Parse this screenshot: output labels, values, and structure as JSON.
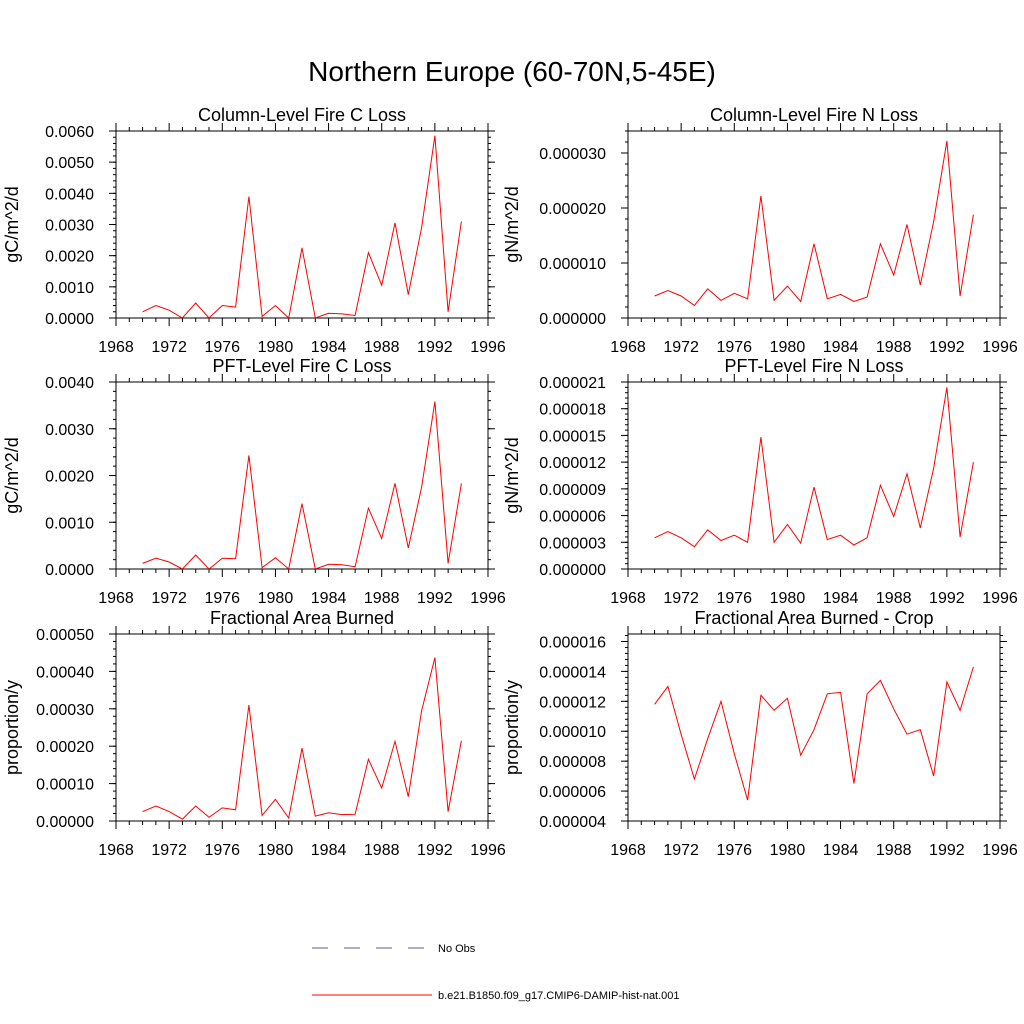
{
  "title": "Northern Europe (60-70N,5-45E)",
  "x": [
    1970,
    1971,
    1972,
    1973,
    1974,
    1975,
    1976,
    1977,
    1978,
    1979,
    1980,
    1981,
    1982,
    1983,
    1984,
    1985,
    1986,
    1987,
    1988,
    1989,
    1990,
    1991,
    1992,
    1993,
    1994
  ],
  "xticks": [
    "1968",
    "1972",
    "1976",
    "1980",
    "1984",
    "1988",
    "1992",
    "1996"
  ],
  "xlim": [
    1968,
    1996
  ],
  "chart_data": [
    {
      "type": "line",
      "title": "Column-Level Fire C Loss",
      "ylabel": "gC/m^2/d",
      "ylim": [
        0,
        0.006
      ],
      "yticks": [
        "0.0000",
        "0.0010",
        "0.0020",
        "0.0030",
        "0.0040",
        "0.0050",
        "0.0060"
      ],
      "series": [
        {
          "name": "b.e21.B1850.f09_g17.CMIP6-DAMIP-hist-nat.001",
          "color": "#ff0000",
          "values": [
            0.0002,
            0.0004,
            0.00025,
            0.0,
            0.00048,
            0.0,
            0.0004,
            0.00035,
            0.0039,
            5e-05,
            0.0004,
            0.0,
            0.00225,
            0.0,
            0.00015,
            0.00013,
            8e-05,
            0.0021,
            0.00105,
            0.00305,
            0.00075,
            0.0029,
            0.00585,
            0.0002,
            0.0031
          ]
        }
      ]
    },
    {
      "type": "line",
      "title": "Column-Level Fire N Loss",
      "ylabel": "gN/m^2/d",
      "ylim": [
        0,
        3.4e-05
      ],
      "yticks": [
        "0.000000",
        "0.000010",
        "0.000020",
        "0.000030"
      ],
      "series": [
        {
          "name": "b.e21.B1850.f09_g17.CMIP6-DAMIP-hist-nat.001",
          "color": "#ff0000",
          "values": [
            4e-06,
            5e-06,
            4e-06,
            2.3e-06,
            5.3e-06,
            3.2e-06,
            4.5e-06,
            3.5e-06,
            2.22e-05,
            3.2e-06,
            5.8e-06,
            3e-06,
            1.35e-05,
            3.5e-06,
            4.3e-06,
            3e-06,
            3.8e-06,
            1.35e-05,
            7.8e-06,
            1.7e-05,
            6e-06,
            1.75e-05,
            3.22e-05,
            4e-06,
            1.88e-05
          ]
        }
      ]
    },
    {
      "type": "line",
      "title": "PFT-Level Fire C Loss",
      "ylabel": "gC/m^2/d",
      "ylim": [
        0,
        0.004
      ],
      "yticks": [
        "0.0000",
        "0.0010",
        "0.0020",
        "0.0030",
        "0.0040"
      ],
      "series": [
        {
          "name": "b.e21.B1850.f09_g17.CMIP6-DAMIP-hist-nat.001",
          "color": "#ff0000",
          "values": [
            0.00012,
            0.00023,
            0.00015,
            0.0,
            0.0003,
            0.0,
            0.00023,
            0.00022,
            0.00243,
            3e-05,
            0.00024,
            0.0,
            0.0014,
            0.0,
            0.0001,
            9e-05,
            5e-05,
            0.0013,
            0.00065,
            0.00183,
            0.00045,
            0.00175,
            0.00358,
            0.00012,
            0.00183
          ]
        }
      ]
    },
    {
      "type": "line",
      "title": "PFT-Level Fire N Loss",
      "ylabel": "gN/m^2/d",
      "ylim": [
        0,
        2.1e-05
      ],
      "yticks": [
        "0.000000",
        "0.000003",
        "0.000006",
        "0.000009",
        "0.000012",
        "0.000015",
        "0.000018",
        "0.000021"
      ],
      "series": [
        {
          "name": "b.e21.B1850.f09_g17.CMIP6-DAMIP-hist-nat.001",
          "color": "#ff0000",
          "values": [
            3.5e-06,
            4.2e-06,
            3.5e-06,
            2.5e-06,
            4.4e-06,
            3.2e-06,
            3.8e-06,
            3e-06,
            1.48e-05,
            3e-06,
            5e-06,
            2.9e-06,
            9.2e-06,
            3.3e-06,
            3.8e-06,
            2.7e-06,
            3.5e-06,
            9.4e-06,
            5.9e-06,
            1.07e-05,
            4.6e-06,
            1.13e-05,
            2.04e-05,
            3.6e-06,
            1.2e-05
          ]
        }
      ]
    },
    {
      "type": "line",
      "title": "Fractional Area Burned",
      "ylabel": "proportion/y",
      "ylim": [
        0,
        0.0005
      ],
      "yticks": [
        "0.00000",
        "0.00010",
        "0.00020",
        "0.00030",
        "0.00040",
        "0.00050"
      ],
      "series": [
        {
          "name": "b.e21.B1850.f09_g17.CMIP6-DAMIP-hist-nat.001",
          "color": "#ff0000",
          "values": [
            2.5e-05,
            4e-05,
            2.5e-05,
            5e-06,
            4e-05,
            1e-05,
            3.5e-05,
            3e-05,
            0.00031,
            1.5e-05,
            5.8e-05,
            8e-06,
            0.000195,
            1.3e-05,
            2.2e-05,
            1.7e-05,
            1.8e-05,
            0.000165,
            8.8e-05,
            0.000213,
            6.5e-05,
            0.000295,
            0.000437,
            2.5e-05,
            0.000215
          ]
        }
      ]
    },
    {
      "type": "line",
      "title": "Fractional Area Burned - Crop",
      "ylabel": "proportion/y",
      "ylim": [
        4e-06,
        1.65e-05
      ],
      "yticks": [
        "0.000004",
        "0.000006",
        "0.000008",
        "0.000010",
        "0.000012",
        "0.000014",
        "0.000016"
      ],
      "series": [
        {
          "name": "b.e21.B1850.f09_g17.CMIP6-DAMIP-hist-nat.001",
          "color": "#ff0000",
          "values": [
            1.18e-05,
            1.3e-05,
            9.8e-06,
            6.8e-06,
            9.5e-06,
            1.2e-05,
            8.5e-06,
            5.4e-06,
            1.24e-05,
            1.14e-05,
            1.22e-05,
            8.4e-06,
            1.01e-05,
            1.25e-05,
            1.26e-05,
            6.5e-06,
            1.25e-05,
            1.34e-05,
            1.15e-05,
            9.8e-06,
            1.01e-05,
            7e-06,
            1.33e-05,
            1.14e-05,
            1.43e-05
          ]
        }
      ]
    }
  ],
  "legend": {
    "placement": "bottom",
    "entries": [
      {
        "label": "No Obs",
        "color": "#5a5aa8",
        "style": "dashed"
      },
      {
        "label": "b.e21.B1850.f09_g17.CMIP6-DAMIP-hist-nat.001",
        "color": "#ff0000",
        "style": "solid"
      }
    ]
  }
}
